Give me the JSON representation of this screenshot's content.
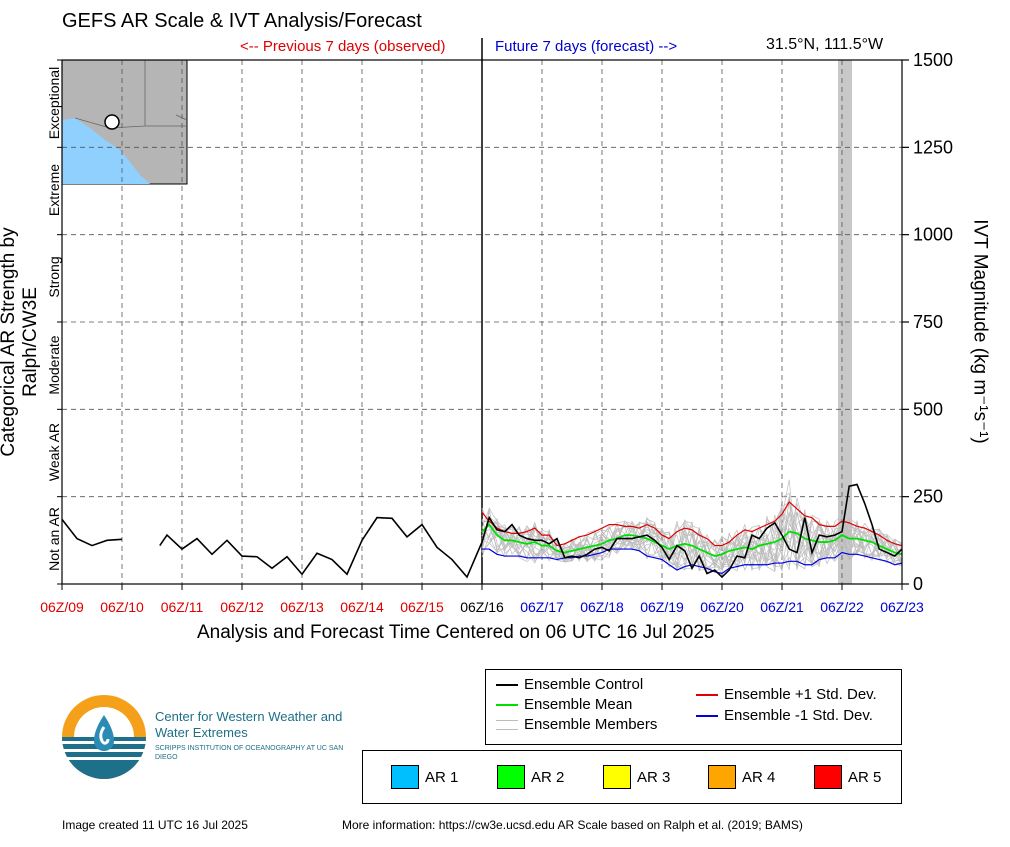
{
  "header": {
    "title": "GEFS AR Scale & IVT Analysis/Forecast",
    "prev_label": "<-- Previous 7 days (observed)",
    "next_label": "Future 7 days (forecast) -->",
    "location": "31.5°N, 111.5°W"
  },
  "axes": {
    "left_label": "Categorical AR Strength by Ralph/CW3E",
    "right_label": "IVT Magnitude (kg m⁻¹s⁻¹)",
    "x_label": "Analysis and Forecast Time Centered on 06 UTC 16 Jul 2025",
    "categories": [
      "Not an AR",
      "Weak AR",
      "Moderate",
      "Strong",
      "Extreme",
      "Exceptional"
    ]
  },
  "legend": {
    "control": "Ensemble Control",
    "mean": "Ensemble Mean",
    "members": "Ensemble Members",
    "plus_sd": "Ensemble +1 Std. Dev.",
    "minus_sd": "Ensemble -1 Std. Dev."
  },
  "ar_legend": [
    {
      "label": "AR 1",
      "color": "#00bfff"
    },
    {
      "label": "AR 2",
      "color": "#00ff00"
    },
    {
      "label": "AR 3",
      "color": "#ffff00"
    },
    {
      "label": "AR 4",
      "color": "#ffa500"
    },
    {
      "label": "AR 5",
      "color": "#ff0000"
    }
  ],
  "org": {
    "name": "Center for Western Weather and Water Extremes",
    "sub": "SCRIPPS INSTITUTION OF OCEANOGRAPHY AT UC SAN DIEGO"
  },
  "footer": {
    "created": "Image created 11 UTC 16 Jul 2025",
    "more_info": "More information: https://cw3e.ucsd.edu AR Scale based on Ralph et al. (2019; BAMS)"
  },
  "chart_data": {
    "type": "line",
    "title": "GEFS AR Scale & IVT Analysis/Forecast",
    "xlabel": "Analysis and Forecast Time Centered on 06 UTC 16 Jul 2025",
    "ylabel": "IVT Magnitude (kg m⁻¹s⁻¹)",
    "ylim": [
      0,
      1500
    ],
    "yticks": [
      0,
      250,
      500,
      750,
      1000,
      1250,
      1500
    ],
    "xlim": [
      -7,
      7
    ],
    "xticks": [
      {
        "day": -7,
        "label": "06Z/09",
        "color": "#e00000"
      },
      {
        "day": -6,
        "label": "06Z/10",
        "color": "#e00000"
      },
      {
        "day": -5,
        "label": "06Z/11",
        "color": "#e00000"
      },
      {
        "day": -4,
        "label": "06Z/12",
        "color": "#e00000"
      },
      {
        "day": -3,
        "label": "06Z/13",
        "color": "#e00000"
      },
      {
        "day": -2,
        "label": "06Z/14",
        "color": "#e00000"
      },
      {
        "day": -1,
        "label": "06Z/15",
        "color": "#e00000"
      },
      {
        "day": 0,
        "label": "06Z/16",
        "color": "#000000"
      },
      {
        "day": 1,
        "label": "06Z/17",
        "color": "#0000d0"
      },
      {
        "day": 2,
        "label": "06Z/18",
        "color": "#0000d0"
      },
      {
        "day": 3,
        "label": "06Z/19",
        "color": "#0000d0"
      },
      {
        "day": 4,
        "label": "06Z/20",
        "color": "#0000d0"
      },
      {
        "day": 5,
        "label": "06Z/21",
        "color": "#0000d0"
      },
      {
        "day": 6,
        "label": "06Z/22",
        "color": "#0000d0"
      },
      {
        "day": 7,
        "label": "06Z/23",
        "color": "#0000d0"
      }
    ],
    "grid": true,
    "observed": [
      [
        [
          -7.0,
          185
        ],
        [
          -6.75,
          130
        ],
        [
          -6.5,
          110
        ],
        [
          -6.25,
          125
        ],
        [
          -6.0,
          128
        ]
      ],
      [
        [
          -5.37,
          110
        ],
        [
          -5.25,
          140
        ],
        [
          -5.0,
          100
        ],
        [
          -4.75,
          130
        ],
        [
          -4.5,
          85
        ],
        [
          -4.25,
          125
        ],
        [
          -4.0,
          80
        ],
        [
          -3.75,
          78
        ],
        [
          -3.5,
          45
        ],
        [
          -3.25,
          78
        ],
        [
          -3.0,
          28
        ],
        [
          -2.75,
          88
        ],
        [
          -2.5,
          70
        ],
        [
          -2.25,
          28
        ],
        [
          -2.0,
          125
        ],
        [
          -1.75,
          190
        ],
        [
          -1.5,
          188
        ],
        [
          -1.25,
          135
        ],
        [
          -1.0,
          170
        ],
        [
          -0.75,
          105
        ],
        [
          -0.5,
          70
        ],
        [
          -0.25,
          20
        ],
        [
          0.0,
          120
        ]
      ]
    ],
    "control": [
      [
        0.0,
        120
      ],
      [
        0.12,
        190
      ],
      [
        0.25,
        155
      ],
      [
        0.38,
        150
      ],
      [
        0.5,
        170
      ],
      [
        0.62,
        140
      ],
      [
        0.75,
        130
      ],
      [
        0.88,
        125
      ],
      [
        1.0,
        125
      ],
      [
        1.12,
        115
      ],
      [
        1.25,
        130
      ],
      [
        1.38,
        75
      ],
      [
        1.5,
        80
      ],
      [
        1.62,
        75
      ],
      [
        1.75,
        85
      ],
      [
        1.88,
        100
      ],
      [
        2.0,
        105
      ],
      [
        2.12,
        95
      ],
      [
        2.25,
        130
      ],
      [
        2.38,
        130
      ],
      [
        2.5,
        130
      ],
      [
        2.62,
        135
      ],
      [
        2.75,
        140
      ],
      [
        2.88,
        125
      ],
      [
        3.0,
        105
      ],
      [
        3.12,
        70
      ],
      [
        3.25,
        110
      ],
      [
        3.38,
        95
      ],
      [
        3.5,
        45
      ],
      [
        3.62,
        80
      ],
      [
        3.75,
        30
      ],
      [
        3.88,
        40
      ],
      [
        4.0,
        20
      ],
      [
        4.12,
        40
      ],
      [
        4.25,
        80
      ],
      [
        4.38,
        75
      ],
      [
        4.5,
        140
      ],
      [
        4.62,
        130
      ],
      [
        4.75,
        160
      ],
      [
        4.88,
        175
      ],
      [
        5.0,
        140
      ],
      [
        5.12,
        100
      ],
      [
        5.25,
        90
      ],
      [
        5.38,
        190
      ],
      [
        5.5,
        90
      ],
      [
        5.62,
        140
      ],
      [
        5.75,
        135
      ],
      [
        5.88,
        140
      ],
      [
        6.0,
        150
      ],
      [
        6.12,
        280
      ],
      [
        6.25,
        285
      ],
      [
        6.38,
        230
      ],
      [
        6.5,
        170
      ],
      [
        6.62,
        100
      ],
      [
        6.75,
        90
      ],
      [
        6.88,
        80
      ],
      [
        7.0,
        100
      ]
    ],
    "mean": [
      [
        0.0,
        150
      ],
      [
        0.12,
        170
      ],
      [
        0.25,
        140
      ],
      [
        0.38,
        125
      ],
      [
        0.5,
        125
      ],
      [
        0.62,
        120
      ],
      [
        0.75,
        115
      ],
      [
        0.88,
        120
      ],
      [
        1.0,
        110
      ],
      [
        1.12,
        110
      ],
      [
        1.25,
        95
      ],
      [
        1.38,
        90
      ],
      [
        1.5,
        95
      ],
      [
        1.62,
        100
      ],
      [
        1.75,
        105
      ],
      [
        1.88,
        110
      ],
      [
        2.0,
        115
      ],
      [
        2.12,
        125
      ],
      [
        2.25,
        130
      ],
      [
        2.38,
        140
      ],
      [
        2.5,
        140
      ],
      [
        2.62,
        135
      ],
      [
        2.75,
        130
      ],
      [
        2.88,
        120
      ],
      [
        3.0,
        110
      ],
      [
        3.12,
        100
      ],
      [
        3.25,
        110
      ],
      [
        3.38,
        115
      ],
      [
        3.5,
        110
      ],
      [
        3.62,
        100
      ],
      [
        3.75,
        90
      ],
      [
        3.88,
        80
      ],
      [
        4.0,
        85
      ],
      [
        4.12,
        95
      ],
      [
        4.25,
        100
      ],
      [
        4.38,
        105
      ],
      [
        4.5,
        100
      ],
      [
        4.62,
        110
      ],
      [
        4.75,
        115
      ],
      [
        4.88,
        120
      ],
      [
        5.0,
        130
      ],
      [
        5.12,
        150
      ],
      [
        5.25,
        145
      ],
      [
        5.38,
        130
      ],
      [
        5.5,
        125
      ],
      [
        5.62,
        120
      ],
      [
        5.75,
        120
      ],
      [
        5.88,
        125
      ],
      [
        6.0,
        140
      ],
      [
        6.12,
        130
      ],
      [
        6.25,
        130
      ],
      [
        6.38,
        125
      ],
      [
        6.5,
        120
      ],
      [
        6.62,
        110
      ],
      [
        6.75,
        100
      ],
      [
        6.88,
        90
      ],
      [
        7.0,
        85
      ]
    ],
    "plus_sd": [
      [
        0.0,
        205
      ],
      [
        0.12,
        180
      ],
      [
        0.25,
        160
      ],
      [
        0.38,
        150
      ],
      [
        0.5,
        145
      ],
      [
        0.62,
        145
      ],
      [
        0.75,
        150
      ],
      [
        0.88,
        160
      ],
      [
        1.0,
        140
      ],
      [
        1.12,
        140
      ],
      [
        1.25,
        110
      ],
      [
        1.38,
        115
      ],
      [
        1.5,
        125
      ],
      [
        1.62,
        135
      ],
      [
        1.75,
        140
      ],
      [
        1.88,
        150
      ],
      [
        2.0,
        160
      ],
      [
        2.12,
        170
      ],
      [
        2.25,
        170
      ],
      [
        2.38,
        165
      ],
      [
        2.5,
        165
      ],
      [
        2.62,
        160
      ],
      [
        2.75,
        170
      ],
      [
        2.88,
        160
      ],
      [
        3.0,
        140
      ],
      [
        3.12,
        130
      ],
      [
        3.25,
        150
      ],
      [
        3.38,
        160
      ],
      [
        3.5,
        155
      ],
      [
        3.62,
        140
      ],
      [
        3.75,
        130
      ],
      [
        3.88,
        110
      ],
      [
        4.0,
        110
      ],
      [
        4.12,
        120
      ],
      [
        4.25,
        140
      ],
      [
        4.38,
        155
      ],
      [
        4.5,
        150
      ],
      [
        4.62,
        160
      ],
      [
        4.75,
        170
      ],
      [
        4.88,
        180
      ],
      [
        5.0,
        200
      ],
      [
        5.12,
        235
      ],
      [
        5.25,
        215
      ],
      [
        5.38,
        195
      ],
      [
        5.5,
        190
      ],
      [
        5.62,
        170
      ],
      [
        5.75,
        165
      ],
      [
        5.88,
        165
      ],
      [
        6.0,
        180
      ],
      [
        6.12,
        175
      ],
      [
        6.25,
        165
      ],
      [
        6.38,
        160
      ],
      [
        6.5,
        150
      ],
      [
        6.62,
        140
      ],
      [
        6.75,
        125
      ],
      [
        6.88,
        115
      ],
      [
        7.0,
        110
      ]
    ],
    "minus_sd": [
      [
        0.0,
        100
      ],
      [
        0.12,
        100
      ],
      [
        0.25,
        85
      ],
      [
        0.38,
        80
      ],
      [
        0.5,
        80
      ],
      [
        0.62,
        80
      ],
      [
        0.75,
        75
      ],
      [
        0.88,
        75
      ],
      [
        1.0,
        75
      ],
      [
        1.12,
        75
      ],
      [
        1.25,
        70
      ],
      [
        1.38,
        75
      ],
      [
        1.5,
        75
      ],
      [
        1.62,
        80
      ],
      [
        1.75,
        80
      ],
      [
        1.88,
        85
      ],
      [
        2.0,
        90
      ],
      [
        2.12,
        100
      ],
      [
        2.25,
        100
      ],
      [
        2.38,
        100
      ],
      [
        2.5,
        100
      ],
      [
        2.62,
        95
      ],
      [
        2.75,
        80
      ],
      [
        2.88,
        75
      ],
      [
        3.0,
        70
      ],
      [
        3.12,
        55
      ],
      [
        3.25,
        40
      ],
      [
        3.38,
        50
      ],
      [
        3.5,
        55
      ],
      [
        3.62,
        50
      ],
      [
        3.75,
        45
      ],
      [
        3.88,
        35
      ],
      [
        4.0,
        30
      ],
      [
        4.12,
        45
      ],
      [
        4.25,
        50
      ],
      [
        4.38,
        55
      ],
      [
        4.5,
        55
      ],
      [
        4.62,
        55
      ],
      [
        4.75,
        55
      ],
      [
        4.88,
        60
      ],
      [
        5.0,
        60
      ],
      [
        5.12,
        65
      ],
      [
        5.25,
        65
      ],
      [
        5.38,
        55
      ],
      [
        5.5,
        55
      ],
      [
        5.62,
        70
      ],
      [
        5.75,
        75
      ],
      [
        5.88,
        75
      ],
      [
        6.0,
        90
      ],
      [
        6.12,
        85
      ],
      [
        6.25,
        85
      ],
      [
        6.38,
        80
      ],
      [
        6.5,
        75
      ],
      [
        6.62,
        70
      ],
      [
        6.75,
        65
      ],
      [
        6.88,
        55
      ],
      [
        7.0,
        60
      ]
    ],
    "highlight_day": 6.0,
    "members_range": [
      0,
      360
    ]
  }
}
